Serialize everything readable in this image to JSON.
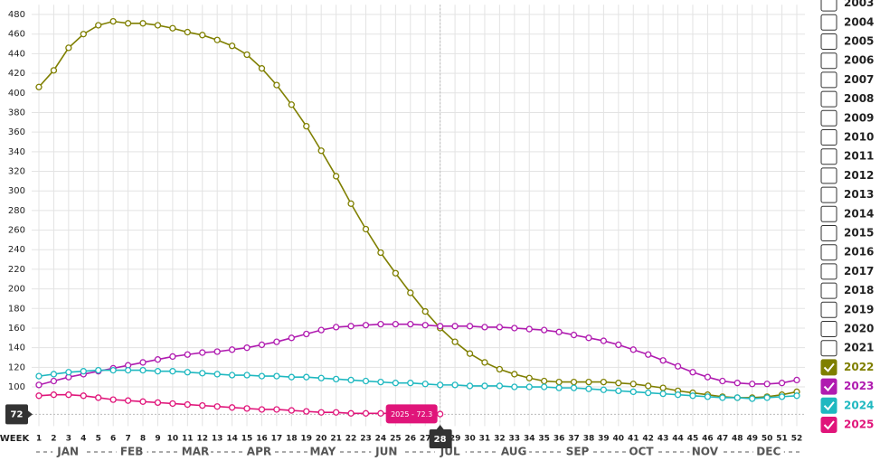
{
  "chart_data": {
    "type": "line",
    "x_label": "WEEK",
    "x": [
      1,
      2,
      3,
      4,
      5,
      6,
      7,
      8,
      9,
      10,
      11,
      12,
      13,
      14,
      15,
      16,
      17,
      18,
      19,
      20,
      21,
      22,
      23,
      24,
      25,
      26,
      27,
      28,
      29,
      30,
      31,
      32,
      33,
      34,
      35,
      36,
      37,
      38,
      39,
      40,
      41,
      42,
      43,
      44,
      45,
      46,
      47,
      48,
      49,
      50,
      51,
      52
    ],
    "months": [
      "JAN",
      "FEB",
      "MAR",
      "APR",
      "MAY",
      "JUN",
      "JUL",
      "AUG",
      "SEP",
      "OCT",
      "NOV",
      "DEC"
    ],
    "ylim": [
      60,
      490
    ],
    "yticks": [
      100,
      120,
      140,
      160,
      180,
      200,
      220,
      240,
      260,
      280,
      300,
      320,
      340,
      360,
      380,
      400,
      420,
      440,
      460,
      480
    ],
    "grid": true,
    "series": [
      {
        "name": "2022",
        "color": "#7f7f00",
        "values": [
          406,
          423,
          446,
          460,
          469,
          473,
          471,
          471,
          469,
          466,
          462,
          459,
          454,
          448,
          439,
          425,
          408,
          388,
          366,
          341,
          315,
          287,
          261,
          237,
          216,
          196,
          177,
          160,
          146,
          134,
          125,
          118,
          113,
          109,
          106,
          105,
          105,
          105,
          105,
          104,
          103,
          101,
          99,
          96,
          94,
          92,
          90,
          89,
          89,
          90,
          92,
          95
        ]
      },
      {
        "name": "2023",
        "color": "#b01cb0",
        "values": [
          102,
          106,
          110,
          113,
          116,
          119,
          122,
          125,
          128,
          131,
          133,
          135,
          136,
          138,
          140,
          143,
          146,
          150,
          154,
          158,
          161,
          162,
          163,
          164,
          164,
          164,
          163,
          162,
          162,
          162,
          161,
          161,
          160,
          159,
          158,
          156,
          153,
          150,
          147,
          143,
          138,
          133,
          127,
          121,
          115,
          110,
          106,
          104,
          103,
          103,
          104,
          107
        ]
      },
      {
        "name": "2024",
        "color": "#1fb8c0",
        "values": [
          111,
          113,
          115,
          116,
          117,
          117,
          117,
          117,
          116,
          116,
          115,
          114,
          113,
          112,
          112,
          111,
          111,
          110,
          110,
          109,
          108,
          107,
          106,
          105,
          104,
          104,
          103,
          102,
          102,
          101,
          101,
          101,
          100,
          100,
          100,
          99,
          99,
          98,
          97,
          96,
          95,
          94,
          93,
          92,
          91,
          90,
          89,
          89,
          88,
          89,
          90,
          91
        ]
      },
      {
        "name": "2025",
        "color": "#e0157a",
        "values": [
          91,
          92,
          92,
          91,
          89,
          87,
          86,
          85,
          84,
          83,
          82,
          81,
          80,
          79,
          78,
          77,
          77,
          76,
          75,
          74,
          74,
          73,
          73,
          73,
          73,
          72.5,
          72.4,
          72.3,
          null,
          null,
          null,
          null,
          null,
          null,
          null,
          null,
          null,
          null,
          null,
          null,
          null,
          null,
          null,
          null,
          null,
          null,
          null,
          null,
          null,
          null,
          null,
          null
        ]
      }
    ],
    "legend_years": [
      "2003",
      "2004",
      "2005",
      "2006",
      "2007",
      "2008",
      "2009",
      "2010",
      "2011",
      "2012",
      "2013",
      "2014",
      "2015",
      "2016",
      "2017",
      "2018",
      "2019",
      "2020",
      "2021"
    ],
    "crosshair": {
      "x": 28,
      "y": 72
    },
    "tooltip": "2025 - 72.3"
  }
}
